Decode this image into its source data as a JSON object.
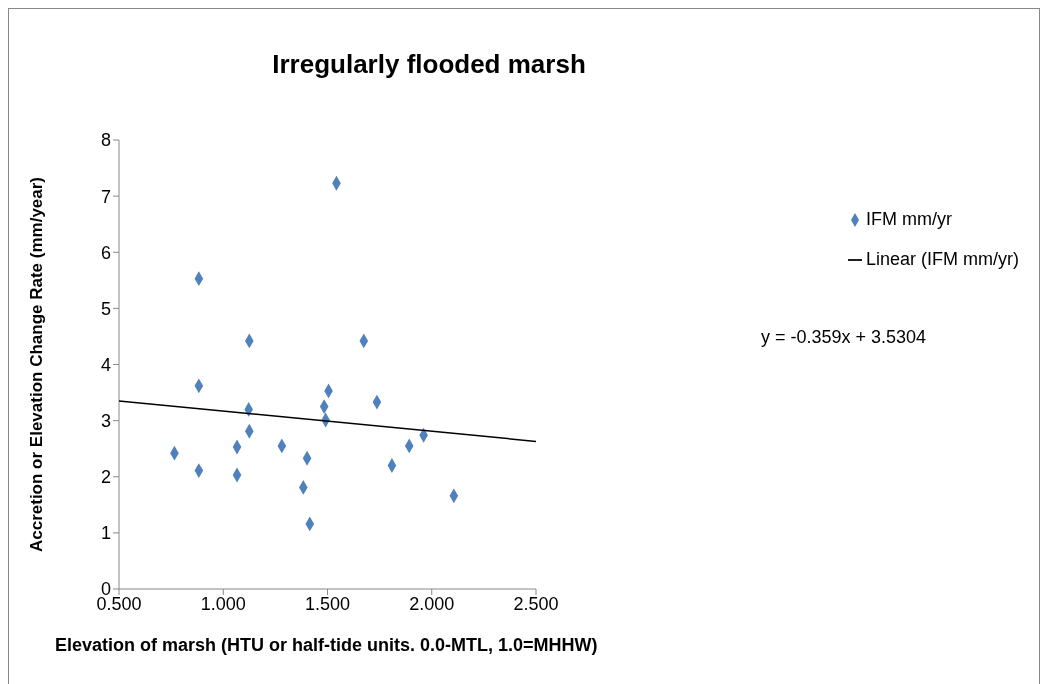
{
  "chart_data": {
    "type": "scatter",
    "title": "Irregularly flooded marsh",
    "xlabel": "Elevation of marsh (HTU or half-tide units.  0.0-MTL, 1.0=MHHW)",
    "ylabel": "Accretion or Elevation Change Rate (mm/year)",
    "x": [
      0.766,
      0.883,
      0.883,
      0.883,
      1.066,
      1.066,
      1.125,
      1.122,
      1.125,
      1.281,
      1.402,
      1.384,
      1.415,
      1.543,
      1.505,
      1.484,
      1.491,
      1.674,
      1.737,
      1.809,
      1.892,
      1.961,
      2.106
    ],
    "series": [
      {
        "name": "IFM mm/yr",
        "color": "#4f81bd",
        "marker": "diamond",
        "values": [
          2.42,
          5.53,
          3.62,
          2.11,
          2.03,
          2.53,
          4.42,
          3.2,
          2.81,
          2.55,
          2.33,
          1.81,
          1.16,
          7.23,
          3.53,
          3.25,
          3.01,
          4.42,
          3.33,
          2.2,
          2.55,
          2.74,
          1.66
        ]
      },
      {
        "name": "Linear (IFM mm/yr)",
        "type": "line",
        "color": "#000000",
        "marker": "none",
        "x": [
          0.5,
          2.5
        ],
        "values": [
          3.35,
          2.63
        ]
      }
    ],
    "annotations": [
      "y = -0.359x + 3.5304"
    ],
    "xlim": [
      0.5,
      2.5
    ],
    "xticks": [
      {
        "value": 0.5,
        "label": "0.500"
      },
      {
        "value": 1,
        "label": "1.000"
      },
      {
        "value": 1.5,
        "label": "1.500"
      },
      {
        "value": 2,
        "label": "2.000"
      },
      {
        "value": 2.5,
        "label": "2.500"
      }
    ],
    "ylim": [
      0,
      8
    ],
    "yticks": [
      0,
      1,
      2,
      3,
      4,
      5,
      6,
      7,
      8
    ],
    "legend": "right"
  }
}
